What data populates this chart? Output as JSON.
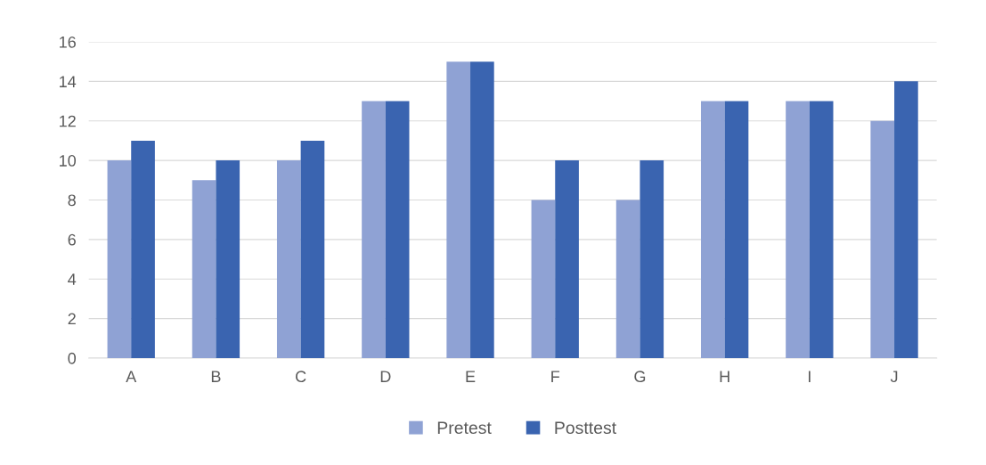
{
  "chart_data": {
    "type": "bar",
    "categories": [
      "A",
      "B",
      "C",
      "D",
      "E",
      "F",
      "G",
      "H",
      "I",
      "J"
    ],
    "series": [
      {
        "name": "Pretest",
        "color": "#8fa2d4",
        "values": [
          10,
          9,
          10,
          13,
          15,
          8,
          8,
          13,
          13,
          12
        ]
      },
      {
        "name": "Posttest",
        "color": "#3a64b0",
        "values": [
          11,
          10,
          11,
          13,
          15,
          10,
          10,
          13,
          13,
          14
        ]
      }
    ],
    "ylim": [
      0,
      16
    ],
    "yticks": [
      0,
      2,
      4,
      6,
      8,
      10,
      12,
      14,
      16
    ],
    "grid": "y",
    "legend": "bottom"
  }
}
